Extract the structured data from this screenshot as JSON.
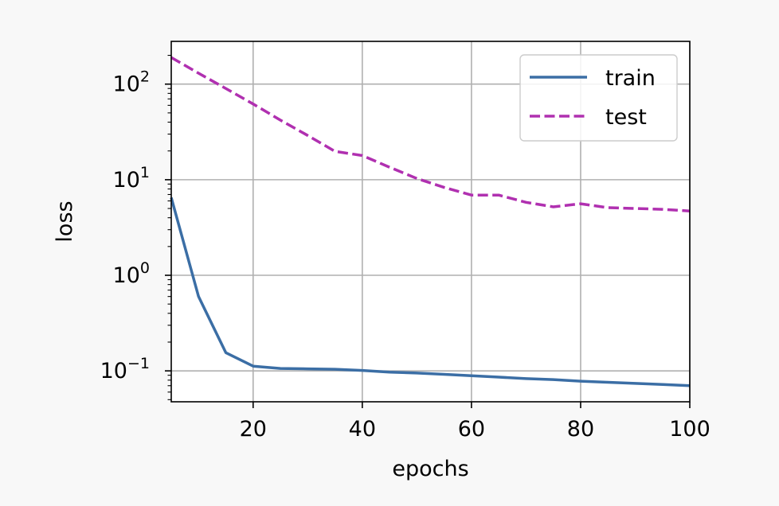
{
  "chart_data": {
    "type": "line",
    "xlabel": "epochs",
    "ylabel": "loss",
    "xlim": [
      5,
      100
    ],
    "ylim": [
      0.0475,
      280
    ],
    "yscale": "log",
    "grid": true,
    "legend_position": "top-right",
    "x_ticks": [
      20,
      40,
      60,
      80,
      100
    ],
    "y_ticks": [
      {
        "value": 0.1,
        "base": "10",
        "exp": "−1"
      },
      {
        "value": 1,
        "base": "10",
        "exp": "0"
      },
      {
        "value": 10,
        "base": "10",
        "exp": "1"
      },
      {
        "value": 100,
        "base": "10",
        "exp": "2"
      }
    ],
    "x": [
      5,
      10,
      15,
      20,
      25,
      30,
      35,
      40,
      45,
      50,
      55,
      60,
      65,
      70,
      75,
      80,
      85,
      90,
      95,
      100
    ],
    "series": [
      {
        "name": "train",
        "color": "#3b6ea5",
        "style": "solid",
        "values": [
          6.5,
          0.6,
          0.155,
          0.112,
          0.106,
          0.105,
          0.104,
          0.101,
          0.097,
          0.095,
          0.092,
          0.089,
          0.086,
          0.083,
          0.081,
          0.078,
          0.076,
          0.074,
          0.072,
          0.07
        ]
      },
      {
        "name": "test",
        "color": "#b030b0",
        "style": "dashed",
        "values": [
          190,
          130,
          90,
          62,
          42,
          29,
          19.8,
          17.9,
          13.5,
          10.3,
          8.3,
          6.9,
          6.9,
          5.8,
          5.2,
          5.6,
          5.1,
          5.0,
          4.9,
          4.7
        ]
      }
    ]
  }
}
